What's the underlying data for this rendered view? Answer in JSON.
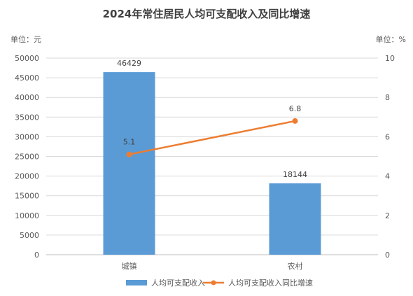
{
  "chart_data": {
    "type": "bar",
    "title": "2024年常住居民人均可支配收入及同比增速",
    "y_left_unit": "单位：元",
    "y_right_unit": "单位：%",
    "categories": [
      "城镇",
      "农村"
    ],
    "series": [
      {
        "name": "人均可支配收入",
        "type": "bar",
        "axis": "left",
        "values": [
          46429,
          18144
        ],
        "color": "#5B9BD5"
      },
      {
        "name": "人均可支配收入同比增速",
        "type": "line",
        "axis": "right",
        "values": [
          5.1,
          6.8
        ],
        "color": "#ED7D31"
      }
    ],
    "ylim_left": [
      0,
      50000
    ],
    "yticks_left": [
      0,
      5000,
      10000,
      15000,
      20000,
      25000,
      30000,
      35000,
      40000,
      45000,
      50000
    ],
    "ylim_right": [
      0,
      10
    ],
    "yticks_right": [
      0,
      2,
      4,
      6,
      8,
      10
    ],
    "grid": true,
    "legend_position": "bottom"
  }
}
